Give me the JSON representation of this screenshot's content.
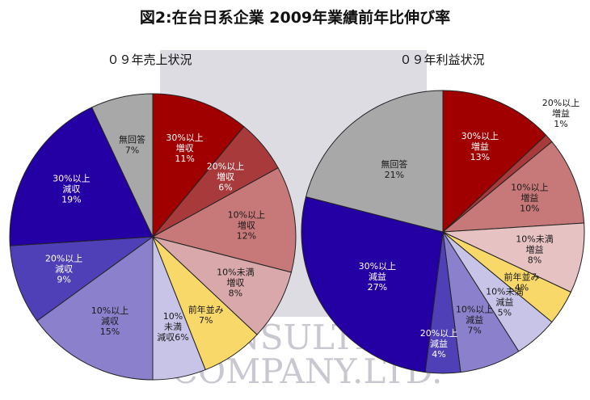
{
  "figure": {
    "title": "図2:在台日系企業 2009年業績前年比伸び率",
    "watermark": [
      "ONSULTING",
      "COMPANY.LTD."
    ]
  },
  "chart_data": [
    {
      "type": "pie",
      "title": "０９年売上状況",
      "slices": [
        {
          "label": [
            "30%以上",
            "増収"
          ],
          "value": 11,
          "display": "11%",
          "color": "#a00000",
          "text_color": "#ffffff"
        },
        {
          "label": [
            "20%以上",
            "増収"
          ],
          "value": 6,
          "display": "6%",
          "color": "#a83a3c",
          "text_color": "#ffffff"
        },
        {
          "label": [
            "10%以上",
            "増収"
          ],
          "value": 12,
          "display": "12%",
          "color": "#c77878",
          "text_color": "#1a1a1a"
        },
        {
          "label": [
            "10%未満",
            "増収"
          ],
          "value": 8,
          "display": "8%",
          "color": "#d8a8aa",
          "text_color": "#1a1a1a"
        },
        {
          "label": [
            "前年並み"
          ],
          "value": 7,
          "display": "7%",
          "color": "#f8d868",
          "text_color": "#1a1a1a"
        },
        {
          "label": [
            "10%",
            "未満",
            "減収6%"
          ],
          "value": 6,
          "display": "",
          "color": "#c8c4e8",
          "text_color": "#1a1a1a"
        },
        {
          "label": [
            "10%以上",
            "減収"
          ],
          "value": 15,
          "display": "15%",
          "color": "#8a80cc",
          "text_color": "#1a1a1a"
        },
        {
          "label": [
            "20%以上",
            "減収"
          ],
          "value": 9,
          "display": "9%",
          "color": "#5040b8",
          "text_color": "#ffffff"
        },
        {
          "label": [
            "30%以上",
            "減収"
          ],
          "value": 19,
          "display": "19%",
          "color": "#2400a4",
          "text_color": "#ffffff"
        },
        {
          "label": [
            "無回答"
          ],
          "value": 7,
          "display": "7%",
          "color": "#a8a8a8",
          "text_color": "#1a1a1a"
        }
      ]
    },
    {
      "type": "pie",
      "title": "０９年利益状況",
      "slices": [
        {
          "label": [
            "30%以上",
            "増益"
          ],
          "value": 13,
          "display": "13%",
          "color": "#a00000",
          "text_color": "#ffffff"
        },
        {
          "label": [
            "20%以上",
            "増益"
          ],
          "value": 1,
          "display": "1%",
          "color": "#a83a3c",
          "text_color": "#1a1a1a"
        },
        {
          "label": [
            "10%以上",
            "増益"
          ],
          "value": 10,
          "display": "10%",
          "color": "#c77878",
          "text_color": "#1a1a1a"
        },
        {
          "label": [
            "10%未満",
            "増益"
          ],
          "value": 8,
          "display": "8%",
          "color": "#e6c2c2",
          "text_color": "#1a1a1a"
        },
        {
          "label": [
            "前年並み"
          ],
          "value": 4,
          "display": "4%",
          "color": "#f8d868",
          "text_color": "#1a1a1a"
        },
        {
          "label": [
            "10%未満",
            "減益"
          ],
          "value": 5,
          "display": "5%",
          "color": "#c8c4e8",
          "text_color": "#1a1a1a"
        },
        {
          "label": [
            "10%以上",
            "減益"
          ],
          "value": 7,
          "display": "7%",
          "color": "#8a80cc",
          "text_color": "#1a1a1a"
        },
        {
          "label": [
            "20%以上",
            "減益"
          ],
          "value": 4,
          "display": "4%",
          "color": "#5040b8",
          "text_color": "#ffffff"
        },
        {
          "label": [
            "30%以上",
            "減益"
          ],
          "value": 27,
          "display": "27%",
          "color": "#2400a4",
          "text_color": "#ffffff"
        },
        {
          "label": [
            "無回答"
          ],
          "value": 21,
          "display": "21%",
          "color": "#a8a8a8",
          "text_color": "#1a1a1a"
        }
      ]
    }
  ]
}
